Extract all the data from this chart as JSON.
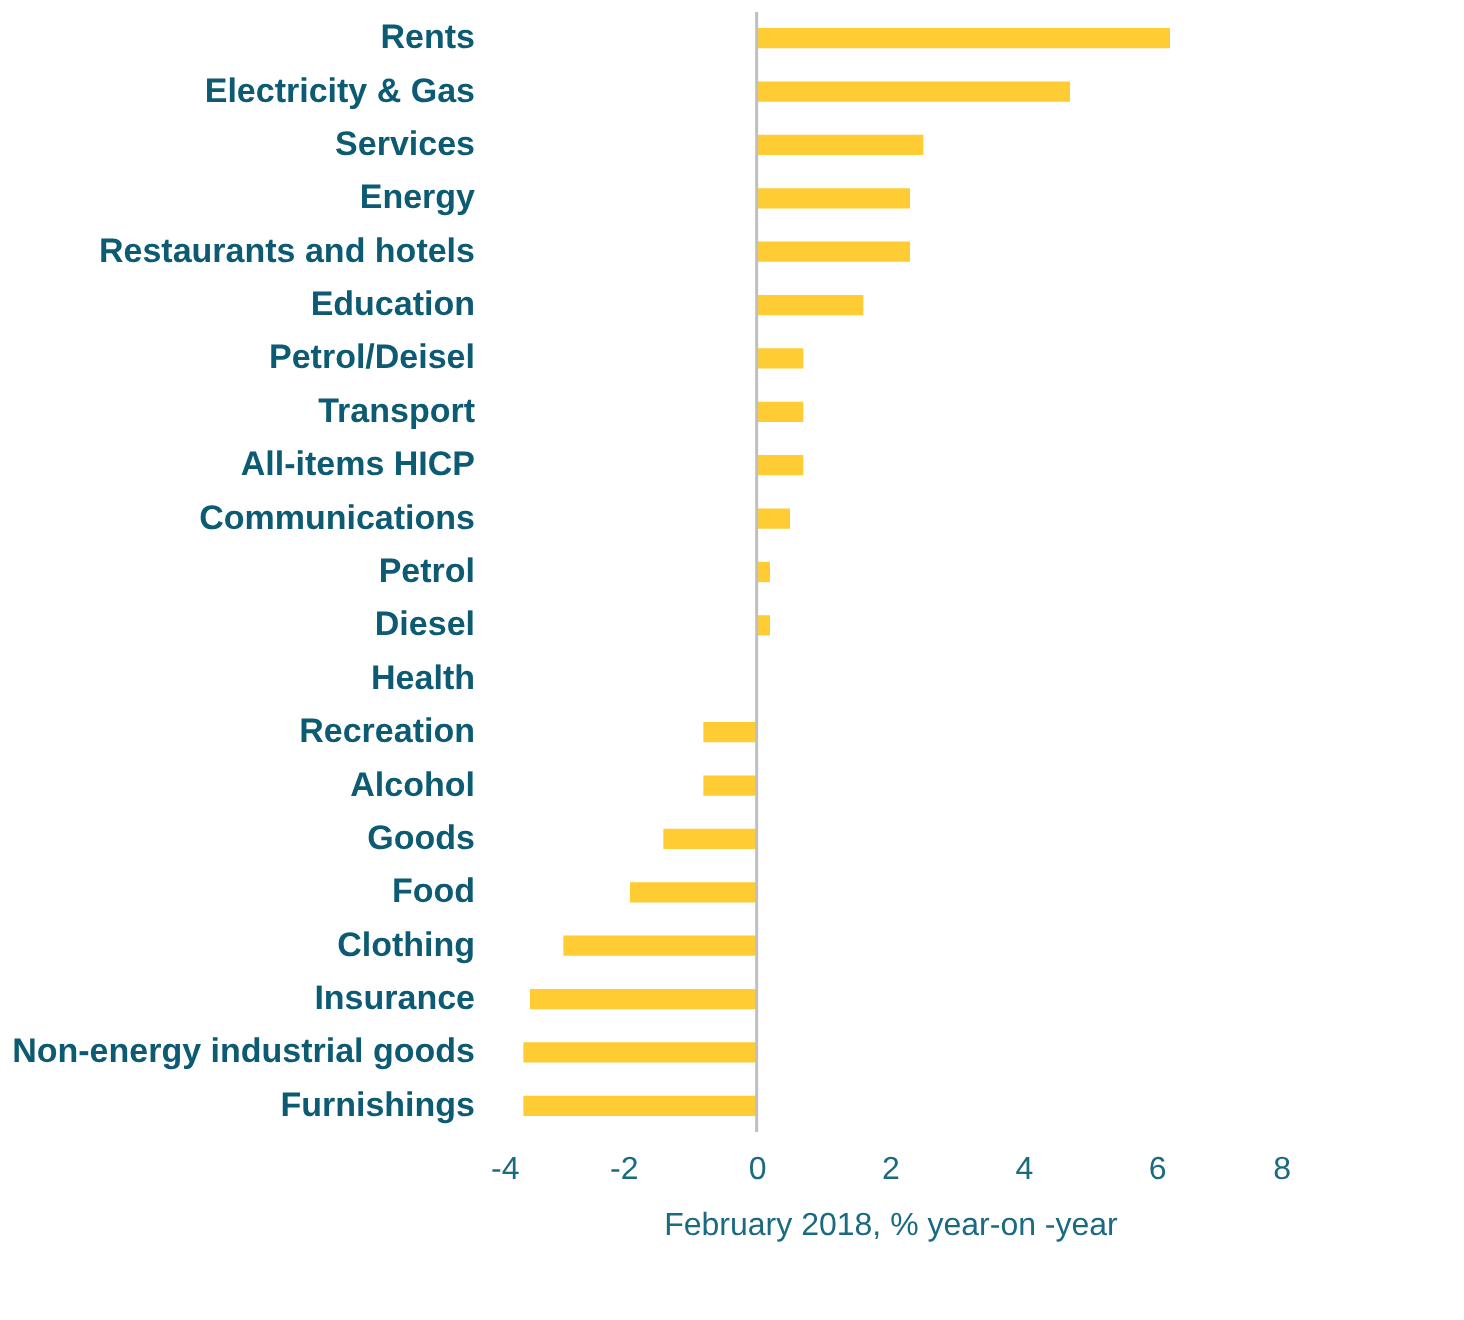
{
  "chart_data": {
    "type": "bar",
    "orientation": "horizontal",
    "xlabel": "February 2018, % year-on -year",
    "categories": [
      "Rents",
      "Electricity & Gas",
      "Services",
      "Energy",
      "Restaurants and hotels",
      "Education",
      "Petrol/Deisel",
      "Transport",
      "All-items HICP",
      "Communications",
      "Petrol",
      "Diesel",
      "Health",
      "Recreation",
      "Alcohol",
      "Goods",
      "Food",
      "Clothing",
      "Insurance",
      "Non-energy industrial goods",
      "Furnishings"
    ],
    "series": [
      {
        "color": "#ffcc33",
        "values": [
          6.2,
          4.7,
          2.5,
          2.3,
          2.3,
          1.6,
          0.7,
          0.7,
          0.7,
          0.5,
          0.2,
          0.2,
          0,
          -0.8,
          -0.8,
          -1.4,
          -1.9,
          -2.9,
          -3.4,
          -3.5,
          -3.5
        ]
      }
    ],
    "xlim": [
      -4,
      8
    ],
    "xticks": [
      -4,
      -2,
      0,
      2,
      4,
      6,
      8
    ],
    "grid": false,
    "ref_lines": [
      {
        "axis": "x",
        "value": 0,
        "color": "#bfbfbf"
      }
    ]
  }
}
